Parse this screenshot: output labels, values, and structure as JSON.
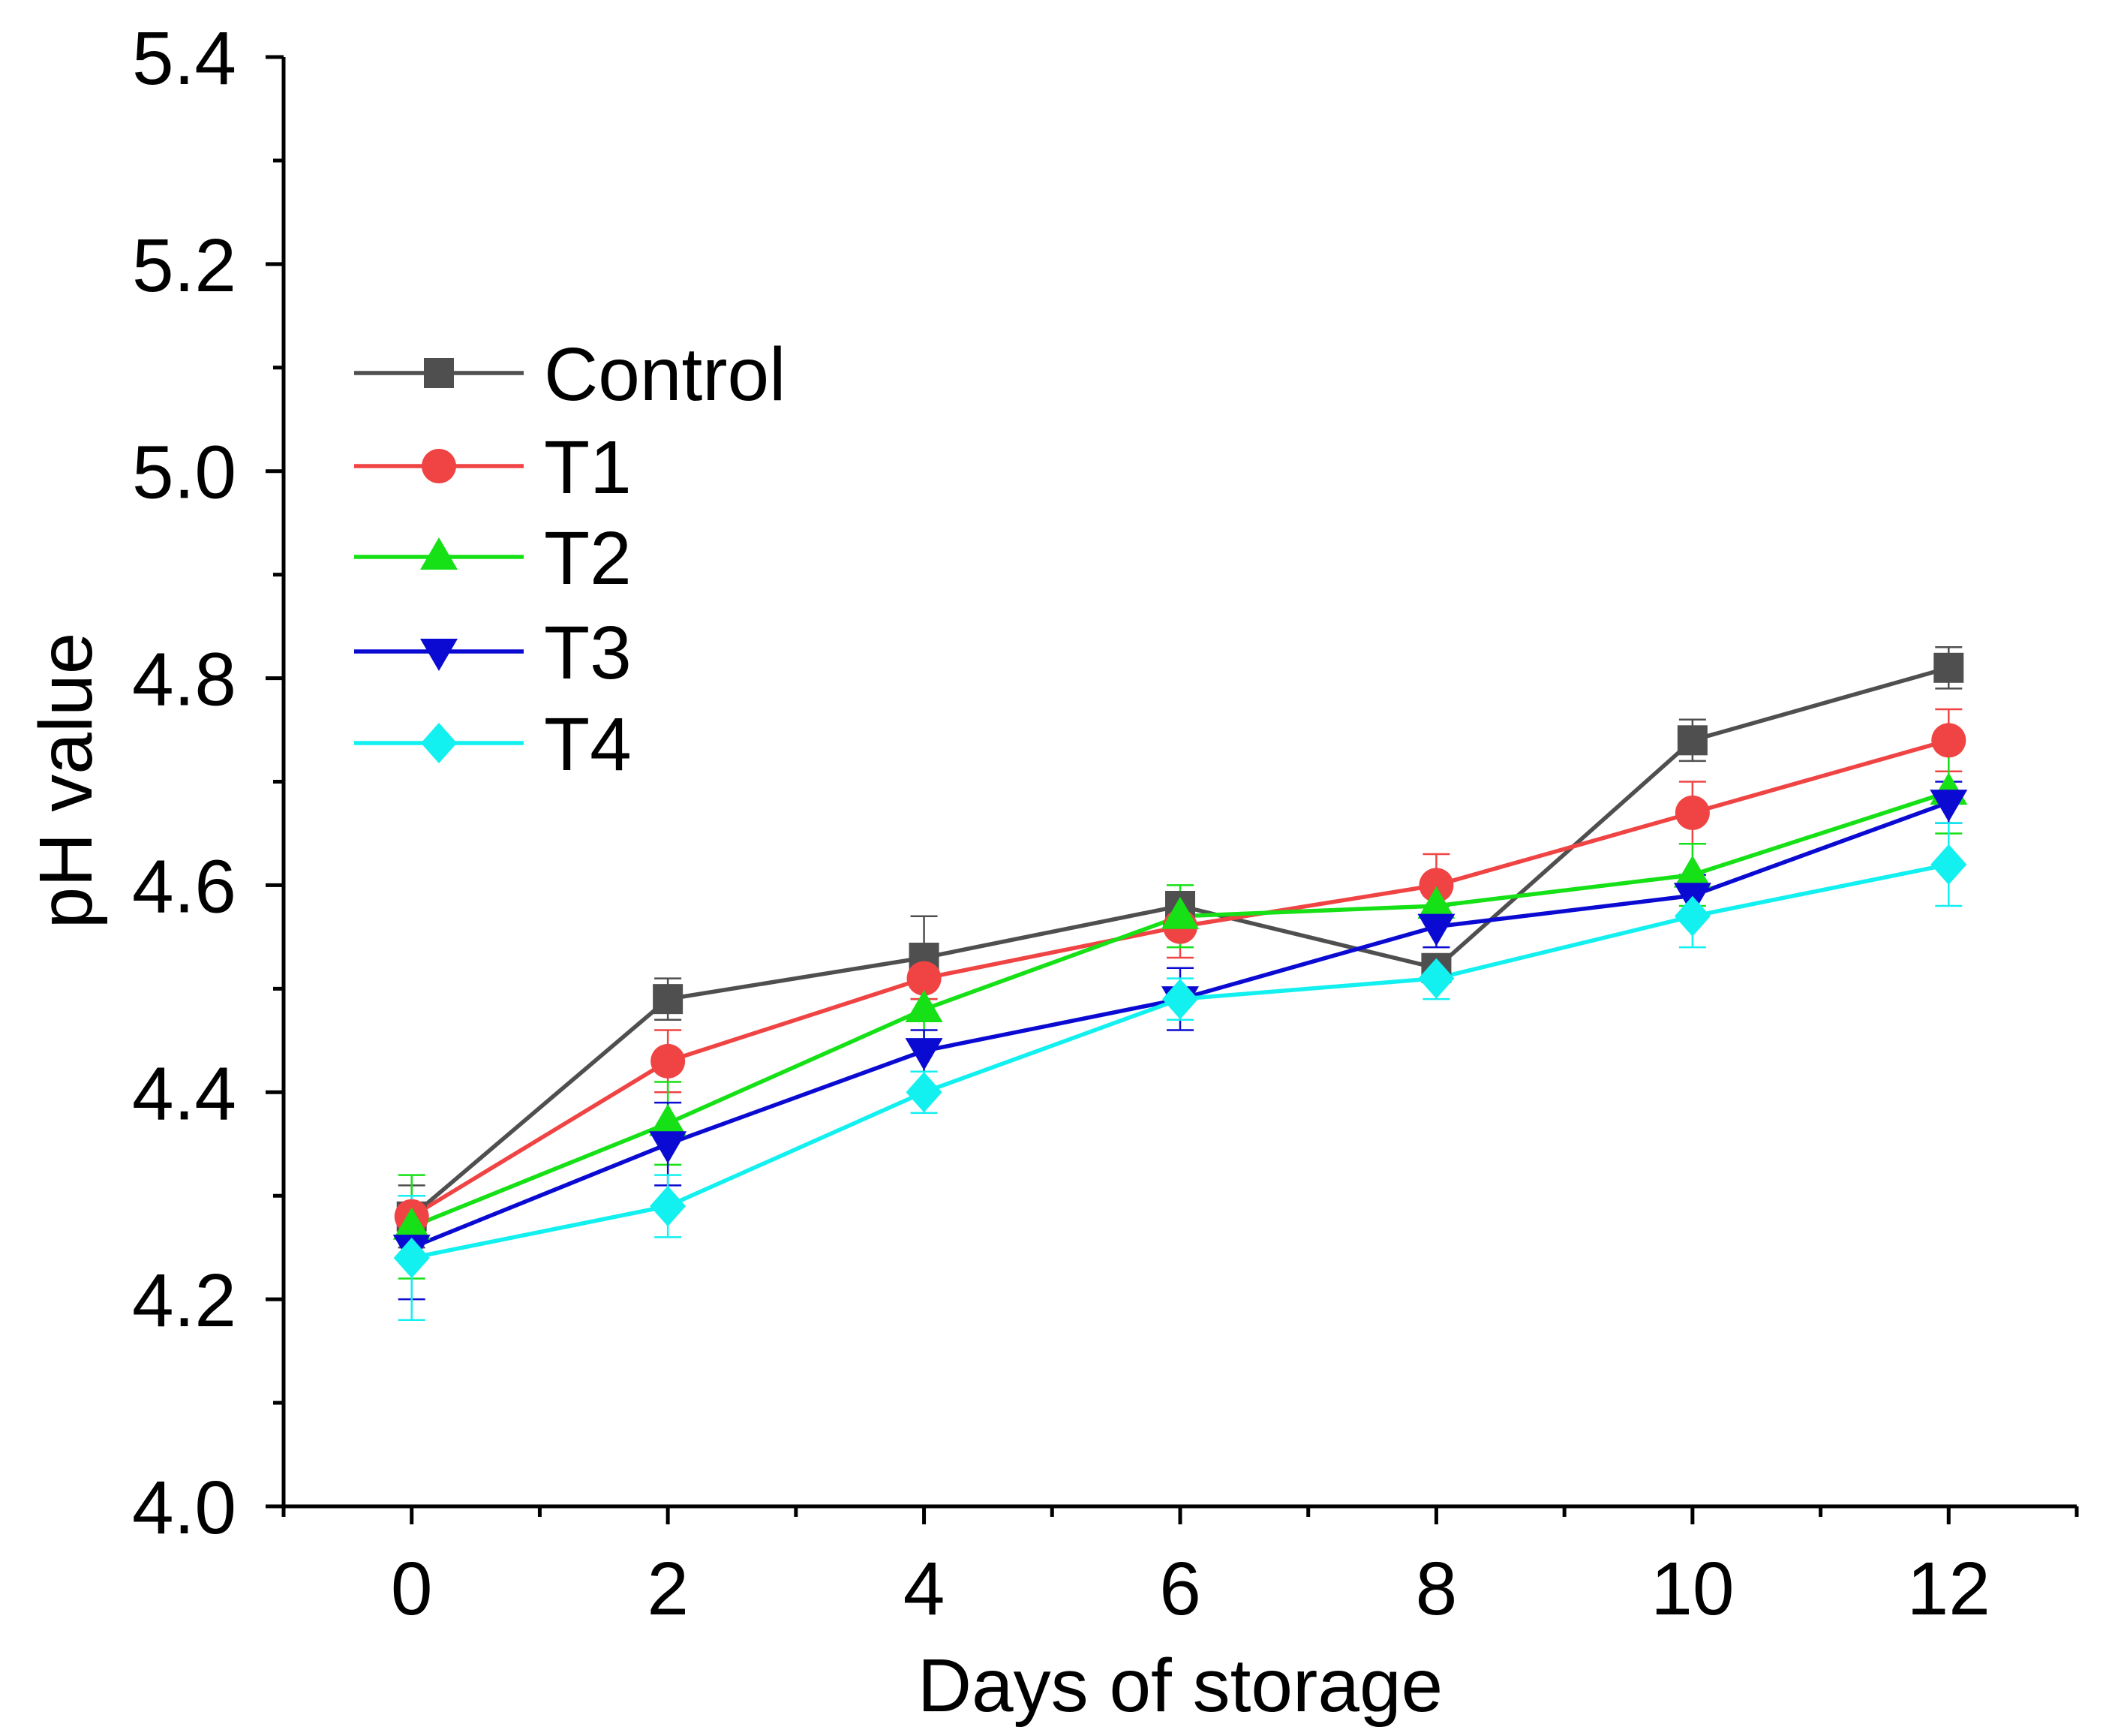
{
  "chart_data": {
    "type": "line",
    "title": "",
    "xlabel": "Days of storage",
    "ylabel": "pH value",
    "x": [
      0,
      2,
      4,
      6,
      8,
      10,
      12
    ],
    "xlim": [
      -1,
      13
    ],
    "ylim": [
      4.0,
      5.4
    ],
    "x_ticks": [
      "0",
      "2",
      "4",
      "6",
      "8",
      "10",
      "12"
    ],
    "y_ticks": [
      "4.0",
      "4.2",
      "4.4",
      "4.6",
      "4.8",
      "5.0",
      "5.2",
      "5.4"
    ],
    "grid": false,
    "legend_position": "upper-left",
    "series": [
      {
        "name": "Control",
        "marker": "square",
        "color": "#4f4f4f",
        "values": [
          4.28,
          4.49,
          4.53,
          4.58,
          4.52,
          4.74,
          4.81
        ],
        "errors": [
          0.03,
          0.02,
          0.04,
          0.01,
          0.01,
          0.02,
          0.02
        ]
      },
      {
        "name": "T1",
        "marker": "circle",
        "color": "#f04444",
        "values": [
          4.28,
          4.43,
          4.51,
          4.56,
          4.6,
          4.67,
          4.74
        ],
        "errors": [
          0.02,
          0.03,
          0.02,
          0.03,
          0.03,
          0.03,
          0.03
        ]
      },
      {
        "name": "T2",
        "marker": "triangle-up",
        "color": "#16e016",
        "values": [
          4.27,
          4.37,
          4.48,
          4.57,
          4.58,
          4.61,
          4.69
        ],
        "errors": [
          0.05,
          0.04,
          0.03,
          0.03,
          0.01,
          0.03,
          0.04
        ]
      },
      {
        "name": "T3",
        "marker": "triangle-down",
        "color": "#0a0ad2",
        "values": [
          4.25,
          4.35,
          4.44,
          4.49,
          4.56,
          4.59,
          4.68
        ],
        "errors": [
          0.05,
          0.04,
          0.02,
          0.03,
          0.02,
          0.02,
          0.02
        ]
      },
      {
        "name": "T4",
        "marker": "diamond",
        "color": "#12f0f0",
        "values": [
          4.24,
          4.29,
          4.4,
          4.49,
          4.51,
          4.57,
          4.62
        ],
        "errors": [
          0.06,
          0.03,
          0.02,
          0.02,
          0.02,
          0.03,
          0.04
        ]
      }
    ]
  }
}
